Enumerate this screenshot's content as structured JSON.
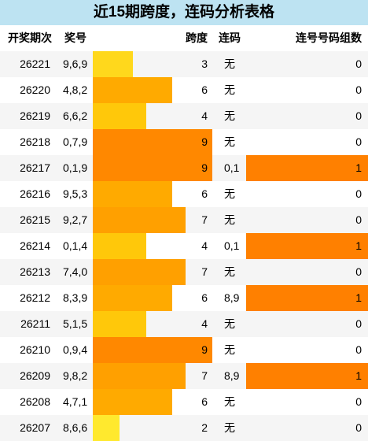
{
  "table": {
    "title": "近15期跨度，连码分析表格",
    "columns": [
      "开奖期次",
      "奖号",
      "跨度",
      "连码",
      "连号号码组数"
    ],
    "rows": [
      [
        "26221",
        "9,6,9",
        3,
        "无",
        0
      ],
      [
        "26220",
        "4,8,2",
        6,
        "无",
        0
      ],
      [
        "26219",
        "6,6,2",
        4,
        "无",
        0
      ],
      [
        "26218",
        "0,7,9",
        9,
        "无",
        0
      ],
      [
        "26217",
        "0,1,9",
        9,
        "0,1",
        1
      ],
      [
        "26216",
        "9,5,3",
        6,
        "无",
        0
      ],
      [
        "26215",
        "9,2,7",
        7,
        "无",
        0
      ],
      [
        "26214",
        "0,1,4",
        4,
        "0,1",
        1
      ],
      [
        "26213",
        "7,4,0",
        7,
        "无",
        0
      ],
      [
        "26212",
        "8,3,9",
        6,
        "8,9",
        1
      ],
      [
        "26211",
        "5,1,5",
        4,
        "无",
        0
      ],
      [
        "26210",
        "0,9,4",
        9,
        "无",
        0
      ],
      [
        "26209",
        "9,8,2",
        7,
        "8,9",
        1
      ],
      [
        "26208",
        "4,7,1",
        6,
        "无",
        0
      ],
      [
        "26207",
        "8,6,6",
        2,
        "无",
        0
      ]
    ],
    "span_colors": [
      "#ffd81c",
      "#ffaa00",
      "#ffc80a",
      "#ff8800",
      "#ff8800",
      "#ffaa00",
      "#ffa000",
      "#ffc80a",
      "#ffa000",
      "#ffaa00",
      "#ffc80a",
      "#ff8800",
      "#ffa000",
      "#ffaa00",
      "#ffe92e"
    ],
    "count_color": "#ff8000"
  }
}
